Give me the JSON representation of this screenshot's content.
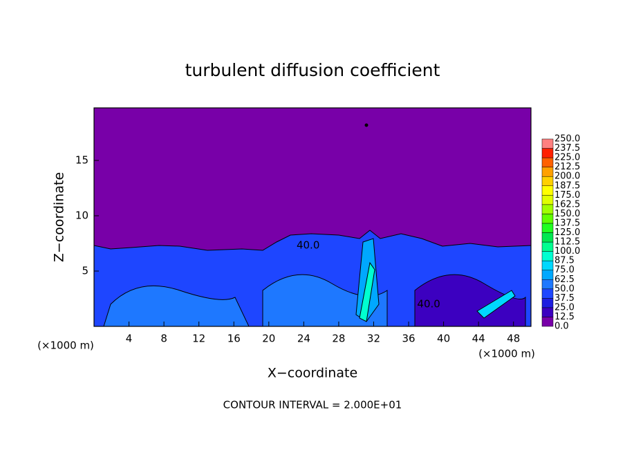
{
  "chart_data": {
    "type": "contour",
    "title": "turbulent diffusion coefficient",
    "x_label": "X−coordinate",
    "y_label": "Z−coordinate",
    "x_unit": "(×1000 m)",
    "y_unit": "(×1000 m)",
    "note": "CONTOUR INTERVAL = 2.000E+01",
    "xlim": [
      0,
      50
    ],
    "ylim": [
      0,
      19.75
    ],
    "xticks": [
      4,
      8,
      12,
      16,
      20,
      24,
      28,
      32,
      36,
      40,
      44,
      48
    ],
    "yticks": [
      5,
      10,
      15
    ],
    "colorbar": {
      "levels": [
        {
          "value": 0,
          "label": "0.0"
        },
        {
          "value": 12.5,
          "label": "12.5"
        },
        {
          "value": 25,
          "label": "25.0"
        },
        {
          "value": 37.5,
          "label": "37.5"
        },
        {
          "value": 50,
          "label": "50.0"
        },
        {
          "value": 62.5,
          "label": "62.5"
        },
        {
          "value": 75,
          "label": "75.0"
        },
        {
          "value": 87.5,
          "label": "87.5"
        },
        {
          "value": 100,
          "label": "100.0"
        },
        {
          "value": 112.5,
          "label": "112.5"
        },
        {
          "value": 125,
          "label": "125.0"
        },
        {
          "value": 137.5,
          "label": "137.5"
        },
        {
          "value": 150,
          "label": "150.0"
        },
        {
          "value": 162.5,
          "label": "162.5"
        },
        {
          "value": 175,
          "label": "175.0"
        },
        {
          "value": 187.5,
          "label": "187.5"
        },
        {
          "value": 200,
          "label": "200.0"
        },
        {
          "value": 212.5,
          "label": "212.5"
        },
        {
          "value": 225,
          "label": "225.0"
        },
        {
          "value": 237.5,
          "label": "237.5"
        },
        {
          "value": 250,
          "label": "250.0"
        }
      ],
      "colors": [
        "#7800a8",
        "#3c00c0",
        "#1e1ee0",
        "#1e46ff",
        "#1e78ff",
        "#00a8ff",
        "#00d8ff",
        "#00ffd0",
        "#00ff90",
        "#00e850",
        "#20ff20",
        "#60ff00",
        "#a0ff00",
        "#e0ff00",
        "#ffff00",
        "#ffd000",
        "#ffa000",
        "#ff6000",
        "#ff2000",
        "#ff8080"
      ]
    },
    "contour_labels": [
      {
        "x": 38.3,
        "y": 2,
        "value": 40,
        "label": "40.0"
      },
      {
        "x": 24.5,
        "y": 7.3,
        "value": 40,
        "label": "40.0"
      }
    ]
  }
}
